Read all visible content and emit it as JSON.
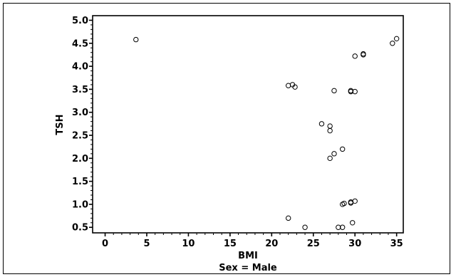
{
  "chart_data": {
    "type": "scatter",
    "title": "",
    "xlabel": "BMI",
    "ylabel": "TSH",
    "caption": "Sex = Male",
    "xlim": [
      -1.5,
      35.8
    ],
    "ylim": [
      0.38,
      5.1
    ],
    "xticks": [
      0,
      5,
      10,
      15,
      20,
      25,
      30,
      35
    ],
    "yticks": [
      0.5,
      1.0,
      1.5,
      2.0,
      2.5,
      3.0,
      3.5,
      4.0,
      4.5,
      5.0
    ],
    "xtick_labels": [
      "0",
      "5",
      "10",
      "15",
      "20",
      "25",
      "30",
      "35"
    ],
    "ytick_labels": [
      "0.5",
      "1.0",
      "1.5",
      "2.0",
      "2.5",
      "3.0",
      "3.5",
      "4.0",
      "4.5",
      "5.0"
    ],
    "grid": false,
    "marker": "open-circle",
    "series": [
      {
        "x": [
          3.7,
          22.0,
          22.5,
          22.8,
          26.0,
          27.0,
          27.0,
          27.5,
          27.0,
          28.5,
          27.5,
          29.5,
          30.0,
          29.5,
          30.0,
          31.0,
          31.0,
          34.5,
          35.0,
          22.0,
          24.0,
          28.0,
          28.5,
          28.5,
          28.7,
          29.5,
          29.5,
          30.0,
          29.7
        ],
        "y": [
          4.58,
          3.58,
          3.6,
          3.55,
          2.75,
          2.7,
          2.6,
          2.1,
          2.0,
          2.2,
          3.47,
          3.45,
          3.45,
          3.47,
          4.22,
          4.25,
          4.27,
          4.5,
          4.6,
          0.7,
          0.5,
          0.5,
          0.5,
          1.0,
          1.02,
          1.03,
          1.05,
          1.07,
          0.6
        ]
      }
    ]
  }
}
